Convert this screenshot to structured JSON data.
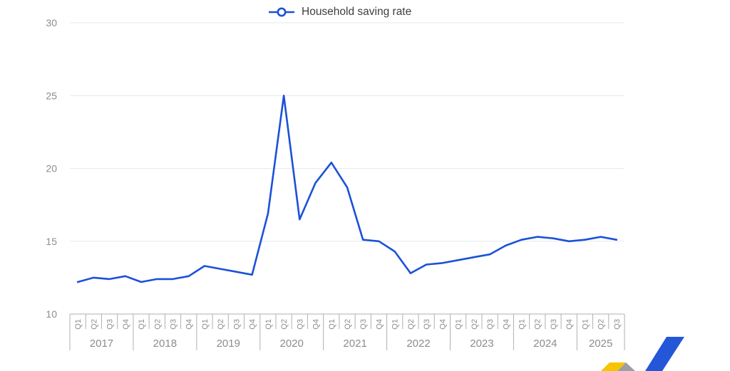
{
  "legend": {
    "label": "Household saving rate"
  },
  "colors": {
    "series_blue": "#1b51d8",
    "grid": "#e4e9f1",
    "axis_border": "#b0b0b0",
    "tick_label": "#8c8c8c",
    "legend_text": "#3d3d3d",
    "logo_blue": "#2456d8",
    "logo_yellow": "#f6c500",
    "logo_gray": "#9a9fa5"
  },
  "chart_data": {
    "type": "line",
    "title": "",
    "legend_entries": [
      "Household saving rate"
    ],
    "legend_position": "top-center",
    "grid": true,
    "ylim": [
      10,
      30
    ],
    "yticks": [
      10,
      15,
      20,
      25,
      30
    ],
    "x_groups": [
      {
        "year": "2017",
        "quarters": [
          "Q1",
          "Q2",
          "Q3",
          "Q4"
        ]
      },
      {
        "year": "2018",
        "quarters": [
          "Q1",
          "Q2",
          "Q3",
          "Q4"
        ]
      },
      {
        "year": "2019",
        "quarters": [
          "Q1",
          "Q2",
          "Q3",
          "Q4"
        ]
      },
      {
        "year": "2020",
        "quarters": [
          "Q1",
          "Q2",
          "Q3",
          "Q4"
        ]
      },
      {
        "year": "2021",
        "quarters": [
          "Q1",
          "Q2",
          "Q3",
          "Q4"
        ]
      },
      {
        "year": "2022",
        "quarters": [
          "Q1",
          "Q2",
          "Q3",
          "Q4"
        ]
      },
      {
        "year": "2023",
        "quarters": [
          "Q1",
          "Q2",
          "Q3",
          "Q4"
        ]
      },
      {
        "year": "2024",
        "quarters": [
          "Q1",
          "Q2",
          "Q3",
          "Q4"
        ]
      },
      {
        "year": "2025",
        "quarters": [
          "Q1",
          "Q2",
          "Q3"
        ]
      }
    ],
    "series": [
      {
        "name": "Household saving rate",
        "color": "#1b51d8",
        "values": [
          12.2,
          12.5,
          12.4,
          12.6,
          12.2,
          12.4,
          12.4,
          12.6,
          13.3,
          13.1,
          12.9,
          12.7,
          16.9,
          25.0,
          16.5,
          19.0,
          20.4,
          18.7,
          15.1,
          15.0,
          14.3,
          12.8,
          13.4,
          13.5,
          13.7,
          13.9,
          14.1,
          14.7,
          15.1,
          15.3,
          15.2,
          15.0,
          15.1,
          15.3,
          15.1
        ]
      }
    ]
  }
}
